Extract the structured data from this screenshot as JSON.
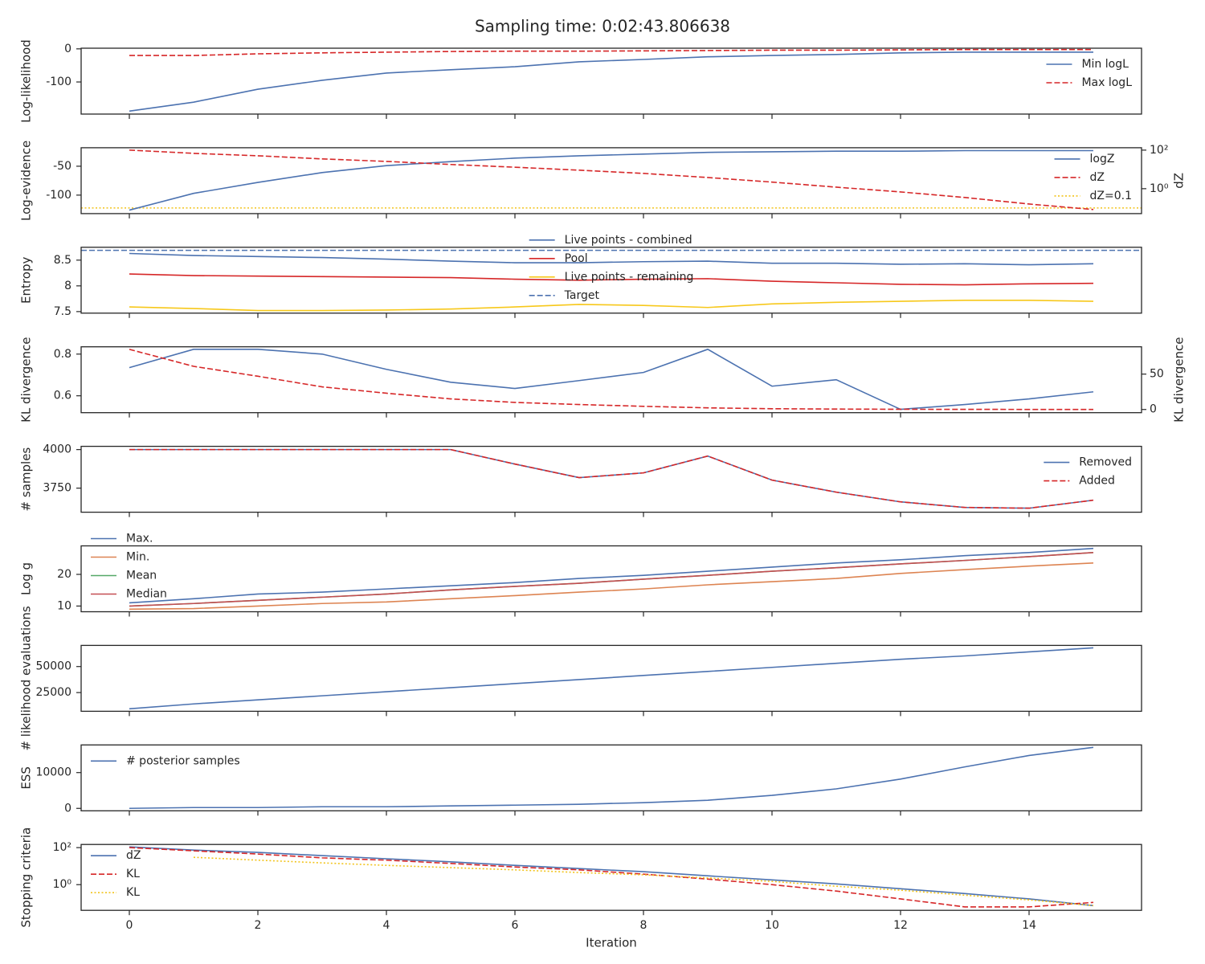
{
  "title": "Sampling time: 0:02:43.806638",
  "chart_data": [
    {
      "type": "line",
      "ylabel": "Log-likelihood",
      "ylim": [
        -197,
        2
      ],
      "yticks": [
        0,
        -100
      ],
      "legend": "upper right",
      "x": [
        0,
        1,
        2,
        3,
        4,
        5,
        6,
        7,
        8,
        9,
        10,
        11,
        12,
        13,
        14,
        15
      ],
      "series": [
        {
          "name": "Min logL",
          "color": "#4c72b0",
          "dash": "solid",
          "values": [
            -188,
            -161,
            -122,
            -95,
            -73,
            -63,
            -54,
            -39,
            -32,
            -24,
            -20,
            -17,
            -12,
            -10,
            -10,
            -10
          ]
        },
        {
          "name": "Max logL",
          "color": "#d62728",
          "dash": "dashed",
          "values": [
            -20,
            -20,
            -15,
            -12,
            -10,
            -8,
            -7,
            -7,
            -6,
            -5,
            -4,
            -4,
            -3,
            -2,
            -2,
            -2
          ]
        }
      ]
    },
    {
      "type": "line",
      "ylabel": "Log-evidence",
      "ylim": [
        -132,
        -18
      ],
      "yticks": [
        -50,
        -100
      ],
      "legend": "upper right",
      "y2label": "dZ",
      "y2log": true,
      "y2lim": [
        0.051,
        133
      ],
      "y2ticks": [
        {
          "value": 100,
          "label": "10²"
        },
        {
          "value": 1,
          "label": "10⁰"
        }
      ],
      "x": [
        0,
        1,
        2,
        3,
        4,
        5,
        6,
        7,
        8,
        9,
        10,
        11,
        12,
        13,
        14,
        15
      ],
      "series": [
        {
          "name": "logZ",
          "color": "#4c72b0",
          "dash": "solid",
          "values": [
            -126,
            -97,
            -78,
            -61,
            -49,
            -42,
            -36,
            -32,
            -29,
            -26,
            -25,
            -24,
            -24,
            -23,
            -23,
            -23
          ]
        },
        {
          "name": "dZ",
          "color": "#d62728",
          "dash": "dashed",
          "axis": "y2",
          "values": [
            100,
            68,
            51,
            35,
            26,
            18,
            13,
            9.1,
            6.2,
            3.8,
            2.2,
            1.2,
            0.68,
            0.35,
            0.16,
            0.083
          ]
        }
      ],
      "reference_lines": [
        {
          "name": "dZ=0.1",
          "color": "#f2c41d",
          "dash": "dotted",
          "axis": "y2",
          "value": 0.1
        }
      ]
    },
    {
      "type": "line",
      "ylabel": "Entropy",
      "ylim": [
        7.47,
        8.75
      ],
      "yticks": [
        8.5,
        8.0,
        7.5
      ],
      "legend": "upper center",
      "x": [
        0,
        1,
        2,
        3,
        4,
        5,
        6,
        7,
        8,
        9,
        10,
        11,
        12,
        13,
        14,
        15
      ],
      "series": [
        {
          "name": "Live points - combined",
          "color": "#4c72b0",
          "dash": "solid",
          "values": [
            8.63,
            8.59,
            8.57,
            8.55,
            8.52,
            8.48,
            8.45,
            8.45,
            8.47,
            8.48,
            8.44,
            8.44,
            8.42,
            8.43,
            8.41,
            8.43
          ]
        },
        {
          "name": "Pool",
          "color": "#d62728",
          "dash": "solid",
          "values": [
            8.23,
            8.2,
            8.19,
            8.18,
            8.17,
            8.16,
            8.13,
            8.11,
            8.13,
            8.14,
            8.09,
            8.06,
            8.03,
            8.02,
            8.04,
            8.05
          ]
        },
        {
          "name": "Live points - remaining",
          "color": "#f7c81b",
          "dash": "solid",
          "values": [
            7.59,
            7.56,
            7.52,
            7.52,
            7.53,
            7.55,
            7.59,
            7.64,
            7.62,
            7.58,
            7.65,
            7.68,
            7.7,
            7.72,
            7.72,
            7.7
          ]
        }
      ],
      "reference_lines": [
        {
          "name": "Target",
          "color": "#4c72b0",
          "dash": "dashed",
          "value": 8.69
        }
      ]
    },
    {
      "type": "line",
      "ylabel": "KL divergence",
      "ylim": [
        0.519,
        0.835
      ],
      "yticks": [
        0.8,
        0.6
      ],
      "y2label": "KL divergence",
      "y2lim": [
        -4.5,
        88.6
      ],
      "y2ticks": [
        50,
        0
      ],
      "x": [
        0,
        1,
        2,
        3,
        4,
        5,
        6,
        7,
        8,
        9,
        10,
        11,
        12,
        13,
        14,
        15
      ],
      "series": [
        {
          "color": "#4c72b0",
          "dash": "solid",
          "values": [
            0.735,
            0.823,
            0.823,
            0.8,
            0.727,
            0.665,
            0.635,
            0.673,
            0.712,
            0.823,
            0.646,
            0.677,
            0.535,
            0.558,
            0.585,
            0.619
          ]
        },
        {
          "color": "#d62728",
          "dash": "dashed",
          "axis": "y2",
          "values": [
            85,
            61,
            47,
            32,
            23,
            15,
            10,
            7,
            4.5,
            2.3,
            1.1,
            0.6,
            0.3,
            0.2,
            0.1,
            0.1
          ]
        }
      ]
    },
    {
      "type": "line",
      "ylabel": "# samples",
      "ylim": [
        3594,
        4021
      ],
      "yticks": [
        4000,
        3750
      ],
      "legend": "upper right",
      "x": [
        0,
        1,
        2,
        3,
        4,
        5,
        6,
        7,
        8,
        9,
        10,
        11,
        12,
        13,
        14,
        15
      ],
      "series": [
        {
          "name": "Removed",
          "color": "#4c72b0",
          "dash": "solid",
          "values": [
            4000,
            4000,
            4000,
            4000,
            4000,
            4000,
            3906,
            3818,
            3849,
            3958,
            3802,
            3724,
            3661,
            3625,
            3620,
            3672
          ]
        },
        {
          "name": "Added",
          "color": "#d62728",
          "dash": "dashed",
          "values": [
            4000,
            4000,
            4000,
            4000,
            4000,
            4000,
            3906,
            3818,
            3849,
            3958,
            3802,
            3724,
            3661,
            3625,
            3620,
            3672
          ]
        }
      ]
    },
    {
      "type": "line",
      "ylabel": "Log g",
      "ylim": [
        8.2,
        29.0
      ],
      "yticks": [
        20,
        10
      ],
      "legend": "upper left",
      "x": [
        0,
        1,
        2,
        3,
        4,
        5,
        6,
        7,
        8,
        9,
        10,
        11,
        12,
        13,
        14,
        15
      ],
      "series": [
        {
          "name": "Max.",
          "color": "#4c72b0",
          "dash": "solid",
          "values": [
            11.0,
            12.3,
            13.8,
            14.4,
            15.4,
            16.4,
            17.4,
            18.7,
            19.7,
            21.0,
            22.3,
            23.6,
            24.6,
            25.9,
            26.9,
            28.2
          ]
        },
        {
          "name": "Min.",
          "color": "#dd8452",
          "dash": "solid",
          "values": [
            9.0,
            9.2,
            10.0,
            10.8,
            11.3,
            12.3,
            13.3,
            14.4,
            15.4,
            16.7,
            17.7,
            18.7,
            20.3,
            21.5,
            22.6,
            23.6
          ]
        },
        {
          "name": "Mean",
          "color": "#55a868",
          "dash": "solid",
          "values": [
            10.0,
            10.8,
            11.8,
            12.8,
            13.8,
            15.1,
            16.2,
            17.2,
            18.5,
            19.7,
            21.0,
            22.1,
            23.3,
            24.4,
            25.6,
            26.9
          ]
        },
        {
          "name": "Median",
          "color": "#c44e52",
          "dash": "solid",
          "values": [
            10.0,
            10.8,
            11.8,
            12.8,
            13.8,
            15.1,
            16.2,
            17.2,
            18.5,
            19.7,
            21.0,
            22.1,
            23.3,
            24.4,
            25.6,
            26.9
          ]
        }
      ]
    },
    {
      "type": "line",
      "ylabel": "# likelihood evaluations",
      "ylim": [
        7031,
        70312
      ],
      "yticks": [
        50000,
        25000
      ],
      "x": [
        0,
        1,
        2,
        3,
        4,
        5,
        6,
        7,
        8,
        9,
        10,
        11,
        12,
        13,
        14,
        15
      ],
      "series": [
        {
          "color": "#4c72b0",
          "dash": "solid",
          "values": [
            9400,
            14100,
            18000,
            21900,
            25800,
            29700,
            33600,
            37500,
            41400,
            45300,
            49200,
            53100,
            57000,
            60200,
            64100,
            68000
          ]
        }
      ]
    },
    {
      "type": "line",
      "ylabel": "ESS",
      "ylim": [
        -682,
        17727
      ],
      "yticks": [
        10000,
        0
      ],
      "legend": "upper left",
      "x": [
        0,
        1,
        2,
        3,
        4,
        5,
        6,
        7,
        8,
        9,
        10,
        11,
        12,
        13,
        14,
        15
      ],
      "series": [
        {
          "name": "# posterior samples",
          "color": "#4c72b0",
          "dash": "solid",
          "values": [
            0,
            230,
            230,
            450,
            450,
            680,
            900,
            1140,
            1600,
            2270,
            3640,
            5450,
            8180,
            11590,
            14770,
            17050
          ]
        }
      ]
    },
    {
      "type": "line",
      "ylabel": "Stopping criteria",
      "xlabel": "Iteration",
      "ylog": true,
      "ylim": [
        0.041,
        148
      ],
      "yticks": [
        {
          "value": 100,
          "label": "10²"
        },
        {
          "value": 1,
          "label": "10⁰"
        }
      ],
      "xlim": [
        -0.75,
        15.75
      ],
      "xticks": [
        0,
        2,
        4,
        6,
        8,
        10,
        12,
        14
      ],
      "legend": "upper left",
      "x": [
        0,
        1,
        2,
        3,
        4,
        5,
        6,
        7,
        8,
        9,
        10,
        11,
        12,
        13,
        14,
        15
      ],
      "series": [
        {
          "name": "dZ",
          "color": "#4c72b0",
          "dash": "solid",
          "values": [
            110,
            74,
            55,
            37,
            25,
            17,
            11,
            7.4,
            5,
            3,
            1.8,
            1.1,
            0.6,
            0.33,
            0.17,
            0.074
          ]
        },
        {
          "name": "KL",
          "color": "#d62728",
          "dash": "dashed",
          "values": [
            100,
            67,
            45,
            28,
            21,
            14,
            9,
            6.3,
            3.7,
            2.0,
            1.0,
            0.45,
            0.17,
            0.063,
            0.063,
            0.11
          ]
        },
        {
          "name": "KL",
          "color": "#f2c41d",
          "dash": "dotted",
          "values": [
            null,
            30,
            21,
            15,
            11,
            8.3,
            6.3,
            4.5,
            3.4,
            2.3,
            1.5,
            0.82,
            0.5,
            0.27,
            0.15,
            0.074
          ]
        }
      ]
    }
  ]
}
